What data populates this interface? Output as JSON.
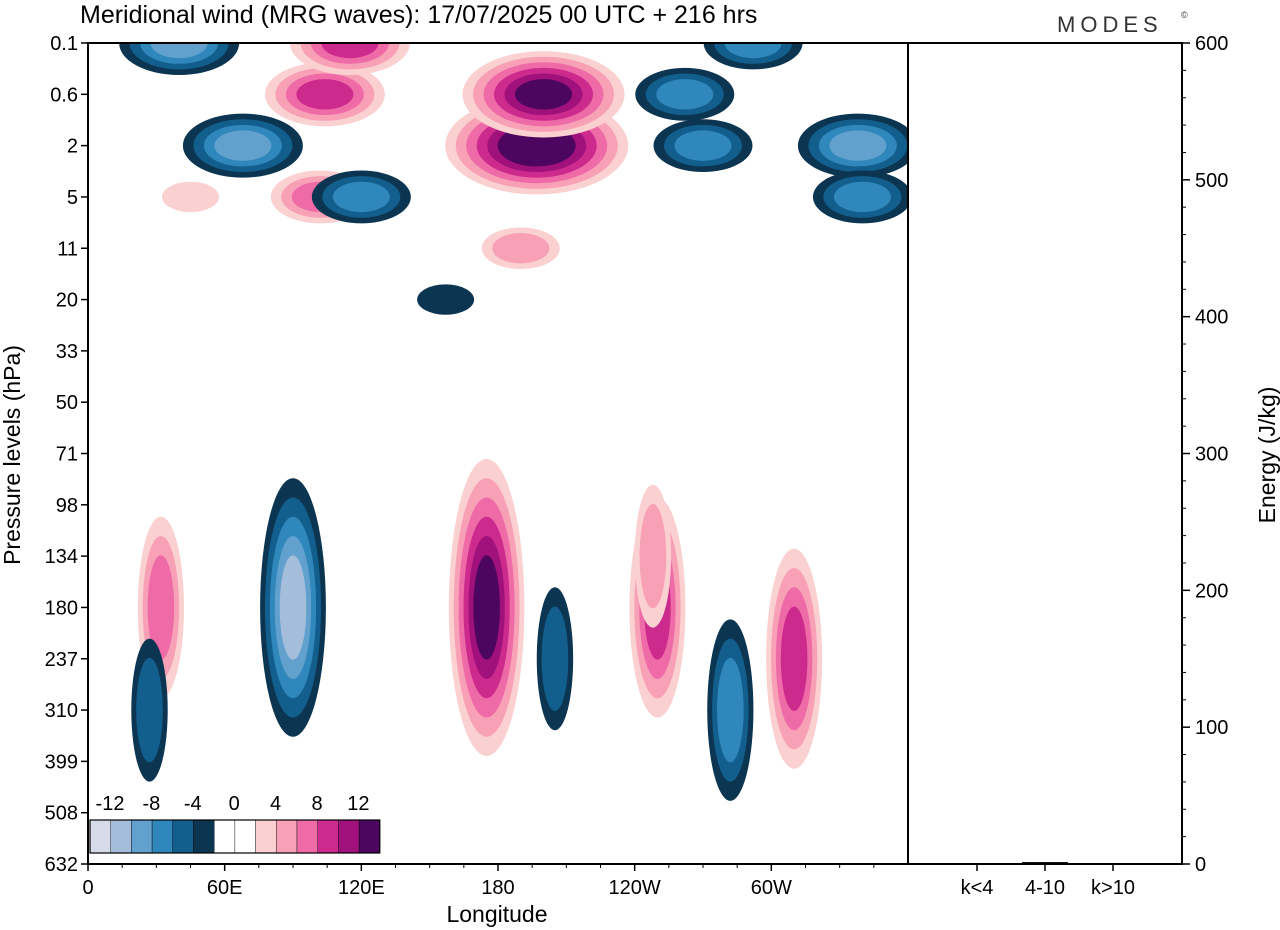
{
  "header": {
    "title": "Meridional wind (MRG waves):  17/07/2025  00 UTC  + 216 hrs",
    "brand": "MODES",
    "brand_mark": "©"
  },
  "colors": {
    "neg": [
      "#0c3551",
      "#125f8e",
      "#2f87bb",
      "#62a0cd",
      "#a3bdda",
      "#d7dbe9"
    ],
    "zero": "#ffffff",
    "pos": [
      "#fbd0d1",
      "#f8a1b6",
      "#ee6ba8",
      "#cd2a8d",
      "#a0117b",
      "#4c0660"
    ]
  },
  "chart_data": [
    {
      "type": "heatmap",
      "title": "Meridional wind (MRG waves):  17/07/2025  00 UTC  + 216 hrs",
      "xlabel": "Longitude",
      "ylabel": "Pressure levels (hPa)",
      "x_ticks": [
        "0",
        "60E",
        "120E",
        "180",
        "120W",
        "60W"
      ],
      "x_tick_values": [
        0,
        60,
        120,
        180,
        240,
        300
      ],
      "xlim": [
        0,
        360
      ],
      "y_ticks": [
        "0.1",
        "0.6",
        "2",
        "5",
        "11",
        "20",
        "33",
        "50",
        "71",
        "98",
        "134",
        "180",
        "237",
        "310",
        "399",
        "508",
        "632"
      ],
      "colorbar": {
        "labels": [
          "-12",
          "-8",
          "-4",
          "0",
          "4",
          "8",
          "12"
        ],
        "levels": [
          -14,
          -12,
          -10,
          -8,
          -6,
          -4,
          -2,
          2,
          4,
          6,
          8,
          10,
          12,
          14
        ]
      },
      "features": [
        {
          "lon": 197,
          "level": "2",
          "value": 14
        },
        {
          "lon": 200,
          "level": "0.6",
          "value": 13
        },
        {
          "lon": 175,
          "level": "180",
          "value": 12
        },
        {
          "lon": 104,
          "level": "0.6",
          "value": 8
        },
        {
          "lon": 115,
          "level": "0.1",
          "value": 8
        },
        {
          "lon": 102,
          "level": "5",
          "value": 6
        },
        {
          "lon": 32,
          "level": "180",
          "value": 6
        },
        {
          "lon": 250,
          "level": "180",
          "value": 8
        },
        {
          "lon": 248,
          "level": "134",
          "value": 4
        },
        {
          "lon": 310,
          "level": "237",
          "value": 8
        },
        {
          "lon": 190,
          "level": "11",
          "value": 4
        },
        {
          "lon": 45,
          "level": "5",
          "value": 3
        },
        {
          "lon": 90,
          "level": "180",
          "value": -11
        },
        {
          "lon": 40,
          "level": "0.1",
          "value": -8
        },
        {
          "lon": 68,
          "level": "2",
          "value": -8
        },
        {
          "lon": 120,
          "level": "5",
          "value": -6
        },
        {
          "lon": 262,
          "level": "0.6",
          "value": -7
        },
        {
          "lon": 292,
          "level": "0.1",
          "value": -6
        },
        {
          "lon": 338,
          "level": "2",
          "value": -8
        },
        {
          "lon": 340,
          "level": "5",
          "value": -6
        },
        {
          "lon": 270,
          "level": "2",
          "value": -6
        },
        {
          "lon": 282,
          "level": "310",
          "value": -6
        },
        {
          "lon": 205,
          "level": "237",
          "value": -5
        },
        {
          "lon": 27,
          "level": "310",
          "value": -4
        },
        {
          "lon": 157,
          "level": "20",
          "value": -2
        }
      ]
    },
    {
      "type": "bar",
      "ylabel": "Energy (J/kg)",
      "categories": [
        "k<4",
        "4-10",
        "k>10"
      ],
      "values": [
        0.6,
        1.4,
        0.3
      ],
      "ylim": [
        0,
        600
      ],
      "y_ticks": [
        "0",
        "100",
        "200",
        "300",
        "400",
        "500",
        "600"
      ]
    }
  ]
}
